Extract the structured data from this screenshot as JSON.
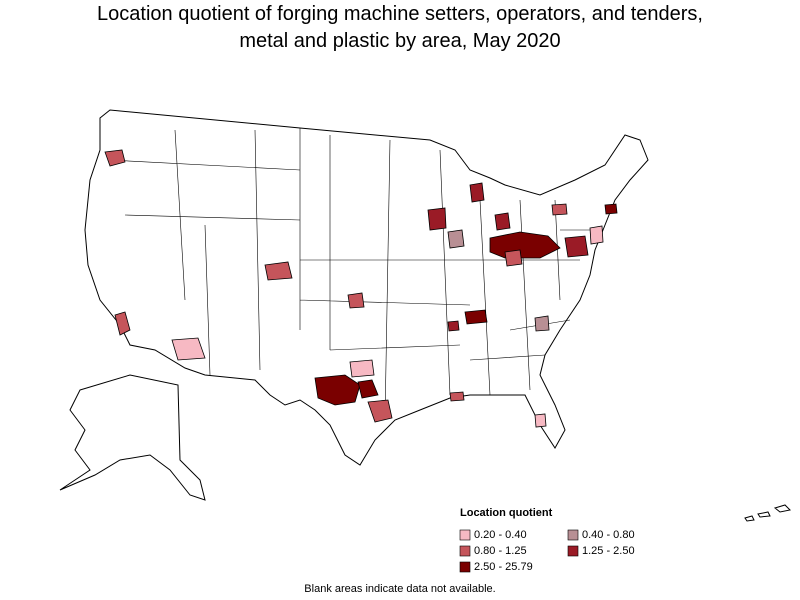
{
  "title": [
    "Location quotient of forging machine setters, operators, and tenders,",
    "metal and plastic by area, May 2020"
  ],
  "legend": {
    "title": "Location quotient",
    "items": [
      {
        "label": "0.20 - 0.40",
        "color": "#f7b9c3"
      },
      {
        "label": "0.40 - 0.80",
        "color": "#b88f94"
      },
      {
        "label": "0.80 - 1.25",
        "color": "#c5555b"
      },
      {
        "label": "1.25 - 2.50",
        "color": "#9a1b26"
      },
      {
        "label": "2.50 - 25.79",
        "color": "#7a0000"
      }
    ]
  },
  "footnote": "Blank areas indicate data not available."
}
